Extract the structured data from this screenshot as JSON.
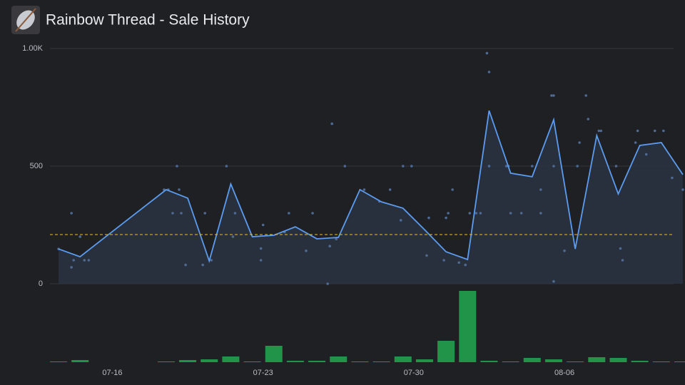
{
  "chart_data": [
    {
      "type": "line",
      "title": "Rainbow Thread - Sale History",
      "x": [
        13.5,
        14.5,
        18.5,
        19.5,
        20.5,
        21.5,
        22.5,
        23.5,
        24.5,
        25.5,
        26.5,
        27.5,
        28.5,
        29.5,
        30.5,
        31.5,
        32.5,
        33.5,
        34.5,
        35.5,
        36.5,
        37.5,
        38.5,
        39.5,
        40.5,
        41.5,
        42.5
      ],
      "series": [
        {
          "color": "#5b9cf0",
          "values": [
            148,
            115,
            400,
            364,
            97,
            424,
            200,
            206,
            242,
            191,
            197,
            400,
            348,
            321,
            230,
            136,
            103,
            736,
            470,
            455,
            697,
            148,
            630,
            382,
            588,
            600,
            464
          ]
        }
      ],
      "scatter": {
        "color": "#4f6a92",
        "x": [
          13.5,
          14.1,
          14.1,
          14.2,
          14.5,
          14.7,
          14.9,
          18.4,
          18.6,
          18.8,
          19.0,
          19.1,
          19.2,
          19.4,
          20.2,
          20.3,
          20.6,
          21.3,
          21.6,
          21.7,
          23.0,
          22.9,
          22.9,
          24.2,
          24.0,
          25.0,
          25.3,
          26.0,
          26.1,
          26.2,
          26.4,
          26.8,
          27.7,
          28.4,
          28.9,
          29.4,
          29.5,
          29.9,
          30.6,
          30.7,
          31.4,
          31.5,
          31.6,
          31.8,
          32.1,
          32.4,
          32.6,
          32.9,
          33.1,
          33.4,
          33.5,
          33.5,
          34.3,
          34.4,
          34.5,
          35.0,
          35.5,
          35.9,
          35.9,
          36.4,
          36.5,
          36.5,
          36.5,
          37.0,
          37.6,
          37.7,
          38.0,
          38.1,
          38.6,
          38.7,
          39.4,
          39.6,
          39.7,
          40.3,
          40.4,
          40.8,
          41.2,
          41.6,
          42.0,
          42.5
        ],
        "values": [
          148,
          300,
          70,
          100,
          200,
          100,
          100,
          400,
          400,
          300,
          500,
          400,
          300,
          80,
          80,
          300,
          100,
          500,
          200,
          300,
          250,
          150,
          100,
          300,
          220,
          140,
          300,
          0,
          160,
          680,
          190,
          500,
          400,
          350,
          400,
          270,
          500,
          500,
          120,
          280,
          100,
          280,
          300,
          400,
          90,
          80,
          300,
          300,
          300,
          980,
          900,
          500,
          500,
          500,
          300,
          300,
          500,
          400,
          300,
          800,
          800,
          500,
          10,
          140,
          500,
          600,
          800,
          700,
          650,
          650,
          500,
          150,
          100,
          600,
          650,
          550,
          650,
          650,
          450,
          400
        ]
      },
      "average": {
        "value": 209,
        "color": "#e8c020"
      },
      "xlim": [
        13.1,
        42.6
      ],
      "ylim": [
        0,
        1000
      ],
      "yticks": [
        0,
        500,
        {
          "value": 1000,
          "label": "1.00K"
        }
      ],
      "xticks": [
        {
          "value": 16,
          "label": "07-16"
        },
        {
          "value": 23,
          "label": "07-23"
        },
        {
          "value": 30,
          "label": "07-30"
        },
        {
          "value": 37,
          "label": "08-06"
        }
      ],
      "grid": true
    },
    {
      "type": "bar",
      "color": "#22944a",
      "x": [
        13.5,
        14.5,
        18.5,
        19.5,
        20.5,
        21.5,
        22.5,
        23.5,
        24.5,
        25.5,
        26.5,
        27.5,
        28.5,
        29.5,
        30.5,
        31.5,
        32.5,
        33.5,
        34.5,
        35.5,
        36.5,
        37.5,
        38.5,
        39.5,
        40.5,
        41.5,
        42.5
      ],
      "values": [
        1,
        3,
        1,
        3,
        4,
        8,
        1,
        23,
        2,
        2,
        8,
        1,
        1,
        8,
        4,
        30,
        100,
        2,
        1,
        6,
        4,
        1,
        7,
        6,
        2,
        1,
        1
      ],
      "ylim": [
        0,
        100
      ]
    }
  ]
}
